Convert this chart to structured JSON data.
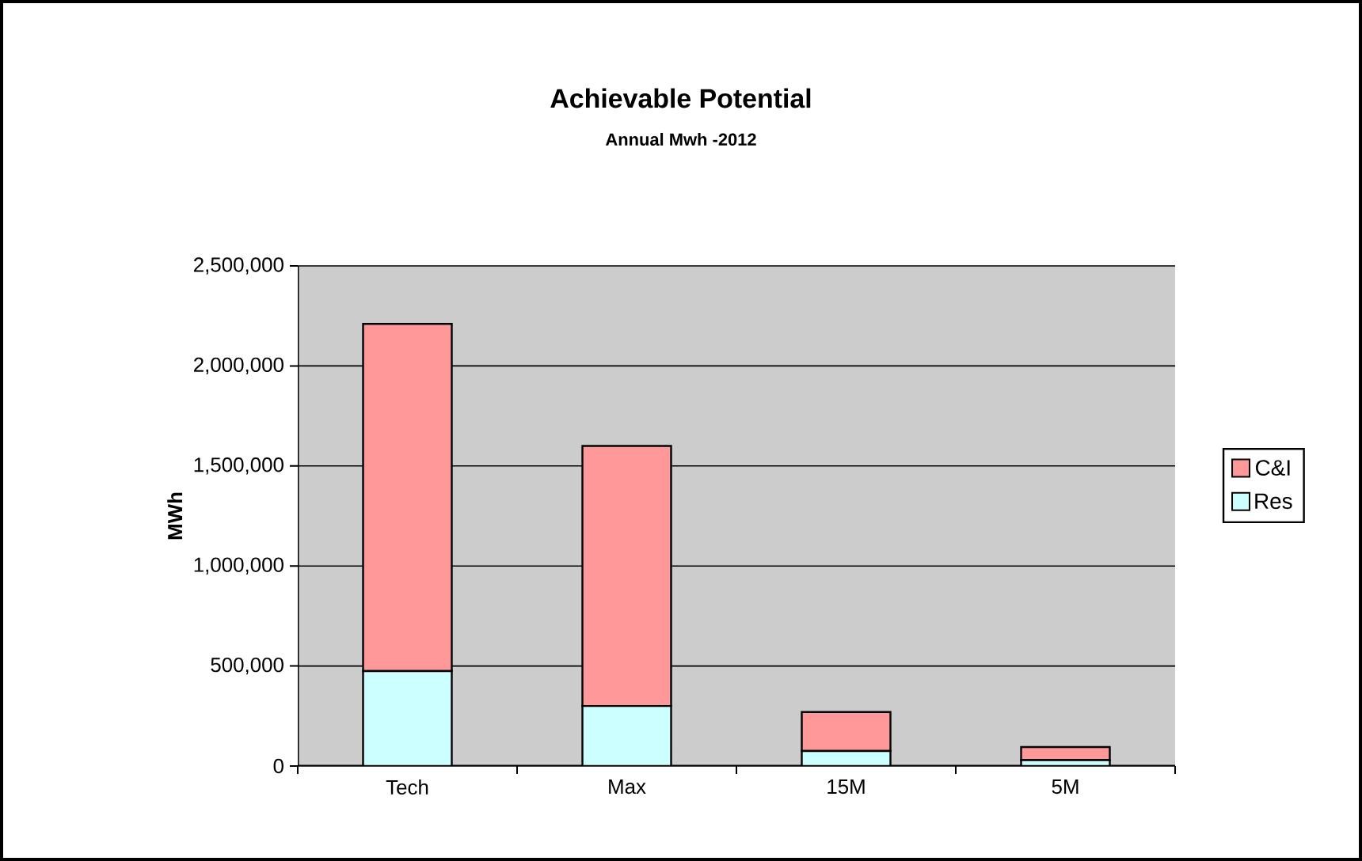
{
  "chart_data": {
    "type": "bar",
    "title": "Achievable Potential",
    "subtitle": "Annual Mwh -2012",
    "ylabel": "MWh",
    "categories": [
      "Tech",
      "Max",
      "15M",
      "5M"
    ],
    "stacked": true,
    "series": [
      {
        "name": "Res",
        "color": "#ccffff",
        "values": [
          475000,
          300000,
          75000,
          30000
        ]
      },
      {
        "name": "C&I",
        "color": "#ff9999",
        "values": [
          1735000,
          1300000,
          195000,
          65000
        ]
      }
    ],
    "ylim": [
      0,
      2500000
    ],
    "yticks": [
      {
        "value": 0,
        "label": "0"
      },
      {
        "value": 500000,
        "label": "500,000"
      },
      {
        "value": 1000000,
        "label": "1,000,000"
      },
      {
        "value": 1500000,
        "label": "1,500,000"
      },
      {
        "value": 2000000,
        "label": "2,000,000"
      },
      {
        "value": 2500000,
        "label": "2,500,000"
      }
    ],
    "grid": "y",
    "legend": "right"
  }
}
